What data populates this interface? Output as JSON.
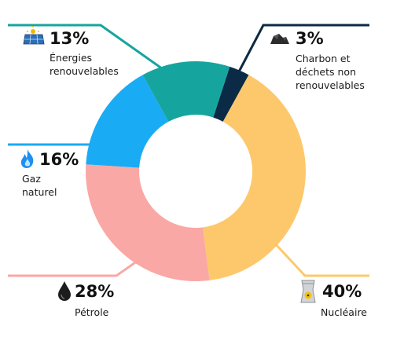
{
  "chart_data": {
    "type": "pie",
    "variant": "donut",
    "title": "",
    "categories": [
      "Charbon et déchets non renouvelables",
      "Nucléaire",
      "Pétrole",
      "Gaz naturel",
      "Énergies renouvelables"
    ],
    "values": [
      3,
      40,
      28,
      16,
      13
    ],
    "colors": [
      "#0b2a45",
      "#fdc86b",
      "#f9a8a5",
      "#1aabf5",
      "#16a59e"
    ],
    "icons": [
      "coal-icon",
      "nuclear-plant-icon",
      "oil-drop-icon",
      "gas-flame-icon",
      "solar-panel-icon"
    ]
  },
  "labels": [
    {
      "pct": "3%",
      "lines": [
        "Charbon et",
        "déchets non",
        "renouvelables"
      ]
    },
    {
      "pct": "40%",
      "lines": [
        "Nucléaire"
      ]
    },
    {
      "pct": "28%",
      "lines": [
        "Pétrole"
      ]
    },
    {
      "pct": "16%",
      "lines": [
        "Gaz",
        "naturel"
      ]
    },
    {
      "pct": "13%",
      "lines": [
        "Énergies",
        "renouvelables"
      ]
    }
  ]
}
